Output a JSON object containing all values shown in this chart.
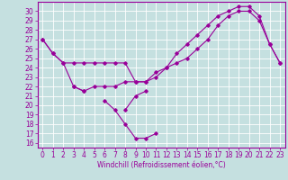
{
  "xlabel": "Windchill (Refroidissement éolien,°C)",
  "x_values": [
    0,
    1,
    2,
    3,
    4,
    5,
    6,
    7,
    8,
    9,
    10,
    11,
    12,
    13,
    14,
    15,
    16,
    17,
    18,
    19,
    20,
    21,
    22,
    23
  ],
  "line1": [
    27.0,
    25.5,
    24.5,
    24.5,
    24.5,
    24.5,
    24.5,
    24.5,
    24.5,
    22.5,
    22.5,
    23.0,
    24.0,
    25.5,
    26.5,
    27.5,
    28.5,
    29.5,
    30.0,
    30.5,
    30.5,
    29.5,
    26.5,
    24.5
  ],
  "line2": [
    27.0,
    25.5,
    24.5,
    22.0,
    21.5,
    22.0,
    22.0,
    22.0,
    22.5,
    22.5,
    22.5,
    23.5,
    24.0,
    24.5,
    25.0,
    26.0,
    27.0,
    28.5,
    29.5,
    30.0,
    30.0,
    29.0,
    26.5,
    24.5
  ],
  "line3": [
    null,
    null,
    null,
    22.0,
    21.5,
    null,
    20.5,
    19.5,
    18.0,
    16.5,
    16.5,
    17.0,
    null,
    null,
    null,
    null,
    null,
    null,
    null,
    null,
    null,
    null,
    null,
    null
  ],
  "line4": [
    null,
    null,
    null,
    null,
    null,
    null,
    null,
    null,
    19.5,
    21.0,
    21.5,
    null,
    null,
    null,
    null,
    null,
    null,
    null,
    null,
    null,
    null,
    null,
    null,
    null
  ],
  "ylim": [
    15.5,
    31.0
  ],
  "xlim": [
    -0.5,
    23.5
  ],
  "yticks": [
    16,
    17,
    18,
    19,
    20,
    21,
    22,
    23,
    24,
    25,
    26,
    27,
    28,
    29,
    30
  ],
  "xticks": [
    0,
    1,
    2,
    3,
    4,
    5,
    6,
    7,
    8,
    9,
    10,
    11,
    12,
    13,
    14,
    15,
    16,
    17,
    18,
    19,
    20,
    21,
    22,
    23
  ],
  "line_color": "#990099",
  "bg_color": "#c5e0e0",
  "grid_color": "#ffffff",
  "tick_fontsize": 5.5,
  "xlabel_fontsize": 5.5
}
